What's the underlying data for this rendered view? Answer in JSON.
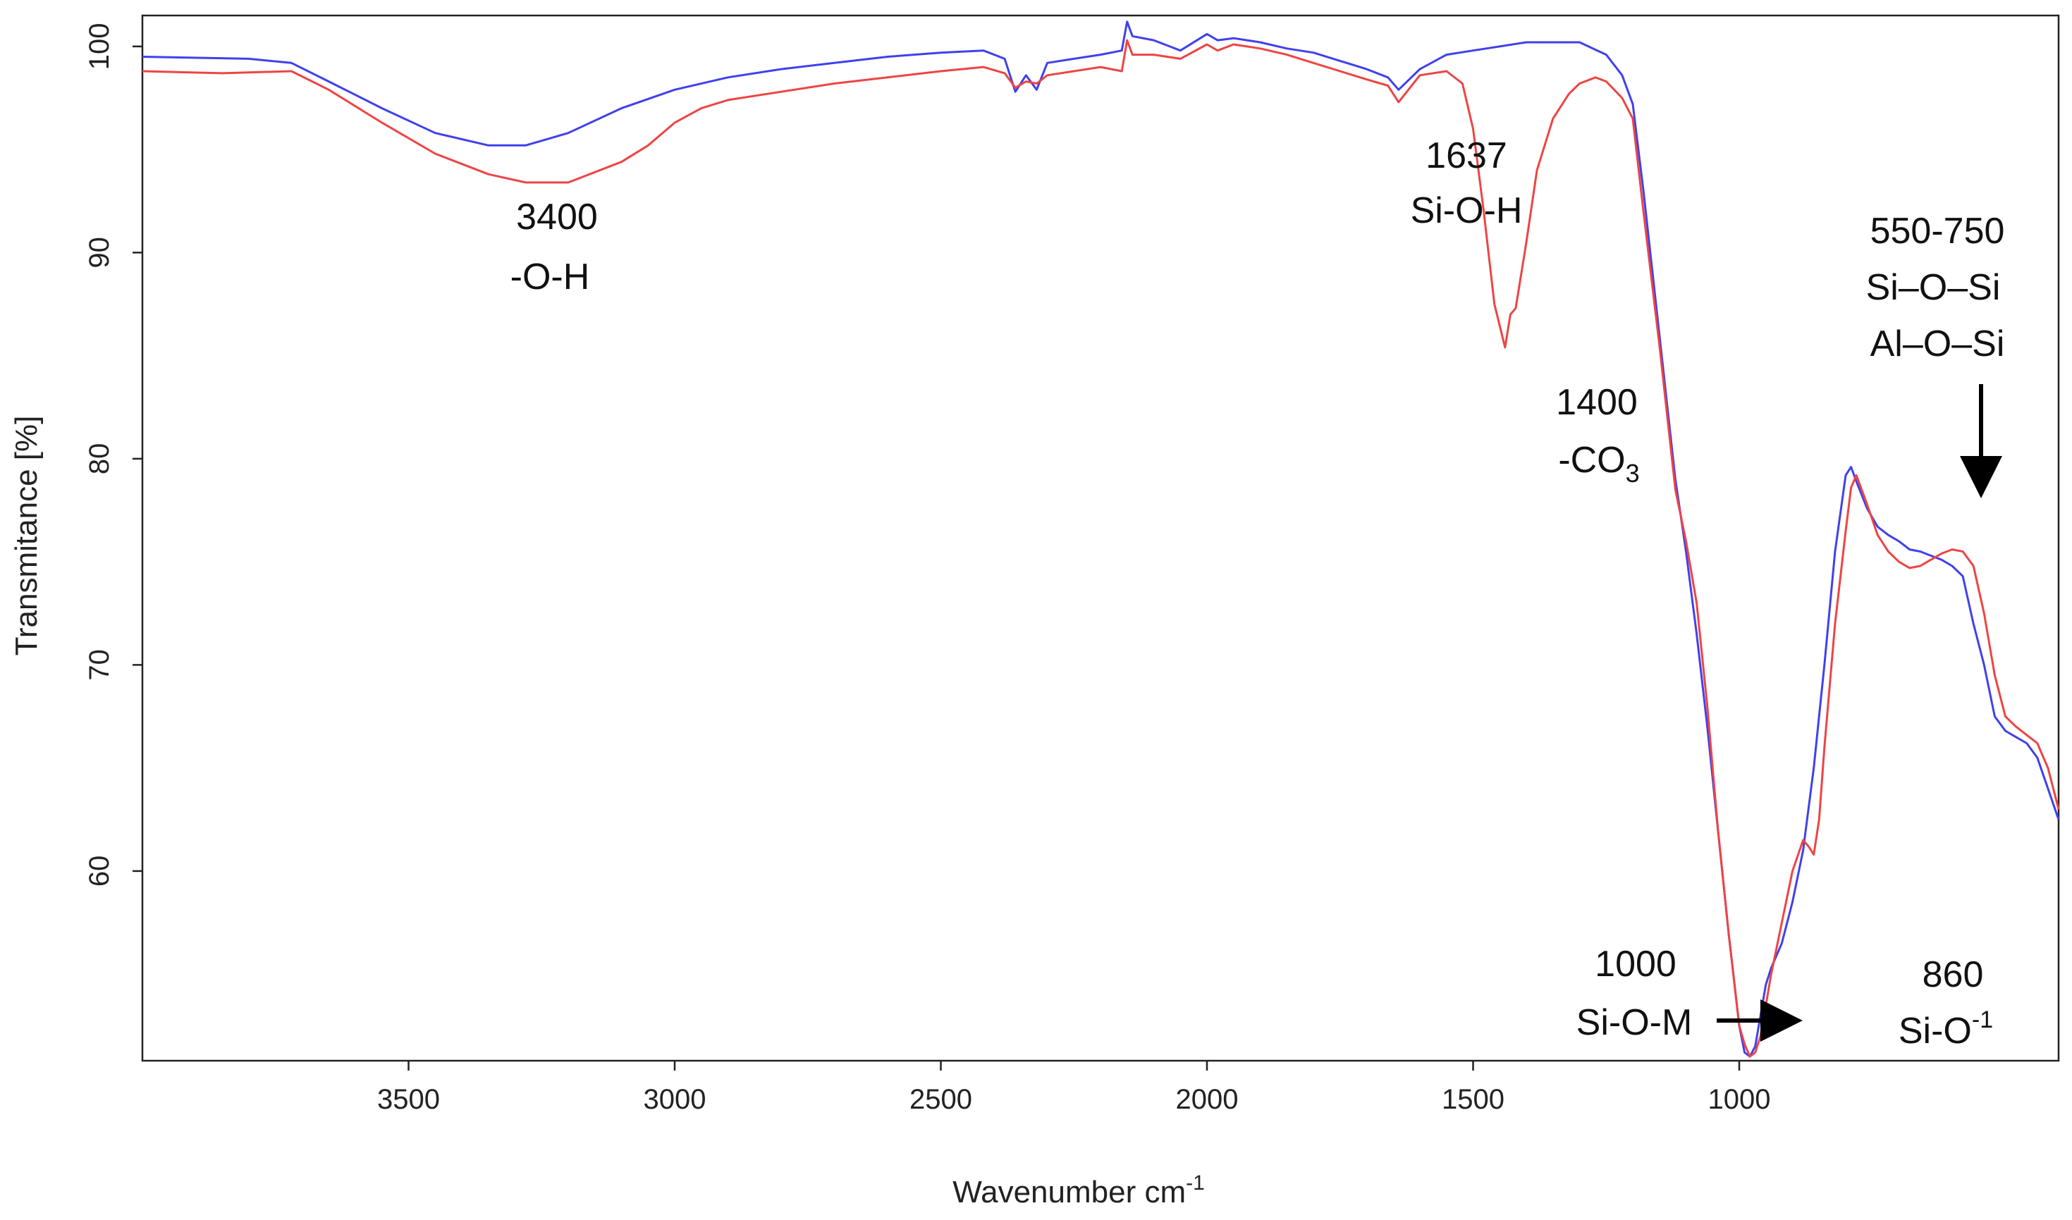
{
  "chart_data": {
    "type": "line",
    "xlabel": "Wavenumber cm",
    "xlabel_sup": "-1",
    "ylabel": "Transmitance [%]",
    "xlim": [
      4000,
      400
    ],
    "ylim": [
      50.8,
      101.5
    ],
    "grid": false,
    "x_ticks": [
      3500,
      3000,
      2500,
      2000,
      1500,
      1000
    ],
    "y_ticks": [
      60,
      70,
      80,
      90,
      100
    ],
    "colors": {
      "blue": "#4040ee",
      "red": "#ee4444"
    },
    "series": [
      {
        "color": "#4040ee",
        "x": [
          4000,
          3800,
          3720,
          3650,
          3550,
          3450,
          3350,
          3280,
          3200,
          3100,
          3000,
          2900,
          2800,
          2700,
          2600,
          2500,
          2420,
          2380,
          2360,
          2340,
          2320,
          2300,
          2250,
          2200,
          2160,
          2150,
          2140,
          2100,
          2050,
          2000,
          1980,
          1950,
          1900,
          1850,
          1800,
          1750,
          1700,
          1660,
          1640,
          1600,
          1550,
          1500,
          1450,
          1400,
          1350,
          1300,
          1250,
          1220,
          1200,
          1180,
          1150,
          1120,
          1100,
          1080,
          1060,
          1040,
          1020,
          1000,
          990,
          980,
          970,
          960,
          950,
          940,
          920,
          900,
          880,
          860,
          840,
          820,
          800,
          790,
          780,
          760,
          740,
          720,
          700,
          680,
          660,
          640,
          620,
          600,
          580,
          560,
          540,
          520,
          500,
          480,
          460,
          440,
          420,
          400
        ],
        "y": [
          99.5,
          99.4,
          99.2,
          98.3,
          97.0,
          95.8,
          95.2,
          95.2,
          95.8,
          97.0,
          97.9,
          98.5,
          98.9,
          99.2,
          99.5,
          99.7,
          99.8,
          99.4,
          97.8,
          98.6,
          97.9,
          99.2,
          99.4,
          99.6,
          99.8,
          101.2,
          100.5,
          100.3,
          99.8,
          100.6,
          100.3,
          100.4,
          100.2,
          99.9,
          99.7,
          99.3,
          98.9,
          98.5,
          97.9,
          98.9,
          99.6,
          99.8,
          100.0,
          100.2,
          100.2,
          100.2,
          99.6,
          98.6,
          97.2,
          93.0,
          86.0,
          79.0,
          75.5,
          71.5,
          67.0,
          62.0,
          57.0,
          52.5,
          51.2,
          51.0,
          51.5,
          53.0,
          54.5,
          55.3,
          56.5,
          58.5,
          61.0,
          65.0,
          70.0,
          75.5,
          79.2,
          79.6,
          78.9,
          77.6,
          76.7,
          76.3,
          76.0,
          75.6,
          75.5,
          75.3,
          75.1,
          74.8,
          74.3,
          72.0,
          70.0,
          67.5,
          66.8,
          66.5,
          66.2,
          65.5,
          64.0,
          62.5
        ]
      },
      {
        "color": "#ee4444",
        "x": [
          4000,
          3850,
          3720,
          3650,
          3550,
          3450,
          3350,
          3280,
          3200,
          3100,
          3050,
          3000,
          2950,
          2900,
          2800,
          2700,
          2600,
          2500,
          2420,
          2380,
          2360,
          2340,
          2320,
          2300,
          2250,
          2200,
          2160,
          2150,
          2140,
          2100,
          2050,
          2000,
          1980,
          1950,
          1900,
          1850,
          1800,
          1750,
          1700,
          1660,
          1640,
          1600,
          1550,
          1520,
          1500,
          1480,
          1460,
          1440,
          1430,
          1420,
          1400,
          1380,
          1350,
          1320,
          1300,
          1270,
          1250,
          1220,
          1200,
          1180,
          1150,
          1120,
          1100,
          1080,
          1060,
          1040,
          1020,
          1000,
          990,
          980,
          970,
          960,
          950,
          940,
          920,
          900,
          880,
          870,
          860,
          850,
          840,
          820,
          800,
          790,
          780,
          760,
          740,
          720,
          700,
          680,
          660,
          640,
          620,
          600,
          580,
          560,
          540,
          520,
          500,
          480,
          460,
          440,
          420,
          400
        ],
        "y": [
          98.8,
          98.7,
          98.8,
          97.9,
          96.3,
          94.8,
          93.8,
          93.4,
          93.4,
          94.4,
          95.2,
          96.3,
          97.0,
          97.4,
          97.8,
          98.2,
          98.5,
          98.8,
          99.0,
          98.7,
          98.0,
          98.3,
          98.2,
          98.6,
          98.8,
          99.0,
          98.8,
          100.3,
          99.6,
          99.6,
          99.4,
          100.1,
          99.8,
          100.1,
          99.9,
          99.6,
          99.2,
          98.8,
          98.4,
          98.1,
          97.3,
          98.6,
          98.8,
          98.2,
          96.0,
          92.0,
          87.5,
          85.4,
          87.0,
          87.3,
          90.5,
          94.0,
          96.5,
          97.7,
          98.2,
          98.5,
          98.3,
          97.5,
          96.5,
          92.0,
          85.5,
          78.5,
          76.0,
          73.0,
          68.0,
          62.0,
          57.0,
          52.5,
          51.6,
          51.0,
          51.2,
          52.0,
          53.5,
          55.0,
          57.5,
          60.0,
          61.5,
          61.2,
          60.8,
          62.5,
          66.0,
          72.0,
          76.5,
          78.6,
          79.2,
          77.8,
          76.3,
          75.5,
          75.0,
          74.7,
          74.8,
          75.1,
          75.4,
          75.6,
          75.5,
          74.8,
          72.5,
          69.5,
          67.5,
          67.0,
          66.6,
          66.2,
          65.0,
          63.0
        ]
      }
    ],
    "annotations": [
      {
        "lines": [
          "3400",
          "-O-H"
        ]
      },
      {
        "lines": [
          "1637",
          "Si-O-H"
        ]
      },
      {
        "lines": [
          "1400",
          "-CO",
          "3"
        ]
      },
      {
        "lines": [
          "550-750",
          "Si–O–Si",
          "Al–O–Si"
        ]
      },
      {
        "lines": [
          "1000",
          "Si-O-M"
        ]
      },
      {
        "lines": [
          "860",
          "Si-O",
          "-1"
        ]
      }
    ]
  }
}
